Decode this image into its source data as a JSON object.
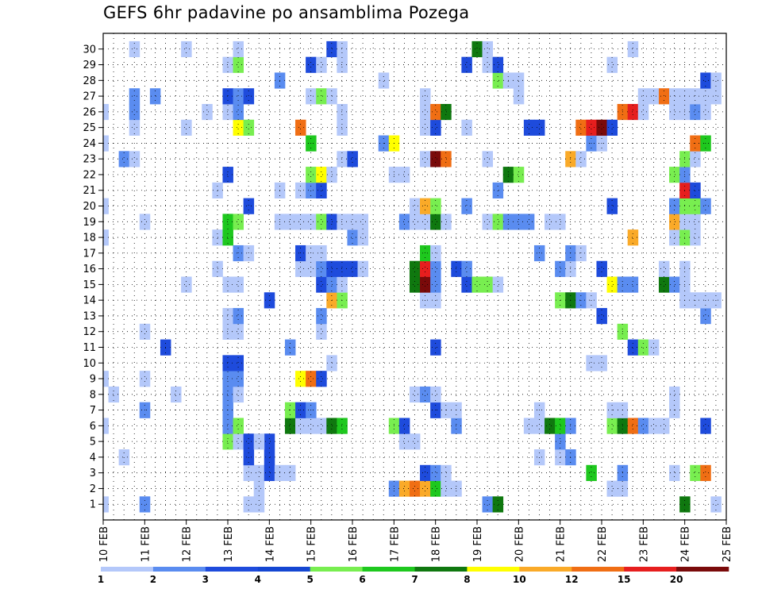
{
  "chart_data": {
    "type": "heatmap",
    "title": "GEFS 6hr padavine po ansamblima Pozega",
    "xlabel": "",
    "ylabel": "",
    "x_tick_labels": [
      "10 FEB",
      "11 FEB",
      "12 FEB",
      "13 FEB",
      "14 FEB",
      "15 FEB",
      "16 FEB",
      "17 FEB",
      "18 FEB",
      "19 FEB",
      "20 FEB",
      "21 FEB",
      "22 FEB",
      "23 FEB",
      "24 FEB",
      "25 FEB"
    ],
    "y_tick_labels": [
      "1",
      "2",
      "3",
      "4",
      "5",
      "6",
      "7",
      "8",
      "9",
      "10",
      "11",
      "12",
      "13",
      "14",
      "15",
      "16",
      "17",
      "18",
      "19",
      "20",
      "21",
      "22",
      "23",
      "24",
      "25",
      "26",
      "27",
      "28",
      "29",
      "30"
    ],
    "x_steps_per_day": 4,
    "n_steps": 61,
    "n_members": 30,
    "colorbar": {
      "levels": [
        "1",
        "2",
        "3",
        "4",
        "5",
        "6",
        "7",
        "8",
        "10",
        "12",
        "15",
        "20"
      ],
      "colors": [
        "#b4c8fa",
        "#5a8cf0",
        "#1e4bdc",
        "#1446d2",
        "#78ee50",
        "#1ec81e",
        "#0f780f",
        "#ffff00",
        "#faaa28",
        "#f06e14",
        "#e61e1e",
        "#7a0a0a"
      ]
    },
    "cells": [
      [
        1,
        0,
        1
      ],
      [
        1,
        4,
        2
      ],
      [
        1,
        14,
        1
      ],
      [
        1,
        15,
        1
      ],
      [
        1,
        37,
        2
      ],
      [
        1,
        38,
        7
      ],
      [
        1,
        56,
        7
      ],
      [
        1,
        59,
        1
      ],
      [
        2,
        15,
        1
      ],
      [
        2,
        28,
        2
      ],
      [
        2,
        29,
        10
      ],
      [
        2,
        30,
        12
      ],
      [
        2,
        31,
        10
      ],
      [
        2,
        32,
        6
      ],
      [
        2,
        33,
        1
      ],
      [
        2,
        34,
        1
      ],
      [
        2,
        49,
        1
      ],
      [
        2,
        50,
        1
      ],
      [
        3,
        14,
        1
      ],
      [
        3,
        15,
        1
      ],
      [
        3,
        16,
        3
      ],
      [
        3,
        17,
        1
      ],
      [
        3,
        18,
        1
      ],
      [
        3,
        31,
        3
      ],
      [
        3,
        32,
        2
      ],
      [
        3,
        33,
        1
      ],
      [
        3,
        47,
        6
      ],
      [
        3,
        50,
        2
      ],
      [
        3,
        55,
        1
      ],
      [
        3,
        57,
        5
      ],
      [
        3,
        58,
        12
      ],
      [
        4,
        2,
        1
      ],
      [
        4,
        14,
        3
      ],
      [
        4,
        16,
        3
      ],
      [
        4,
        42,
        1
      ],
      [
        4,
        44,
        1
      ],
      [
        4,
        45,
        2
      ],
      [
        5,
        12,
        5
      ],
      [
        5,
        13,
        1
      ],
      [
        5,
        14,
        3
      ],
      [
        5,
        16,
        3
      ],
      [
        5,
        15,
        1
      ],
      [
        5,
        29,
        1
      ],
      [
        5,
        30,
        1
      ],
      [
        5,
        44,
        2
      ],
      [
        6,
        0,
        1
      ],
      [
        6,
        12,
        2
      ],
      [
        6,
        13,
        5
      ],
      [
        6,
        18,
        7
      ],
      [
        6,
        19,
        1
      ],
      [
        6,
        20,
        1
      ],
      [
        6,
        21,
        1
      ],
      [
        6,
        22,
        7
      ],
      [
        6,
        23,
        6
      ],
      [
        6,
        28,
        5
      ],
      [
        6,
        29,
        3
      ],
      [
        6,
        34,
        2
      ],
      [
        6,
        41,
        1
      ],
      [
        6,
        42,
        1
      ],
      [
        6,
        43,
        7
      ],
      [
        6,
        44,
        6
      ],
      [
        6,
        45,
        2
      ],
      [
        6,
        49,
        5
      ],
      [
        6,
        50,
        7
      ],
      [
        6,
        51,
        12
      ],
      [
        6,
        52,
        2
      ],
      [
        6,
        53,
        1
      ],
      [
        6,
        54,
        1
      ],
      [
        6,
        58,
        3
      ],
      [
        7,
        4,
        2
      ],
      [
        7,
        12,
        2
      ],
      [
        7,
        18,
        5
      ],
      [
        7,
        19,
        3
      ],
      [
        7,
        20,
        2
      ],
      [
        7,
        32,
        3
      ],
      [
        7,
        33,
        1
      ],
      [
        7,
        34,
        1
      ],
      [
        7,
        42,
        1
      ],
      [
        7,
        49,
        1
      ],
      [
        7,
        50,
        1
      ],
      [
        7,
        55,
        1
      ],
      [
        8,
        1,
        1
      ],
      [
        8,
        7,
        1
      ],
      [
        8,
        12,
        2
      ],
      [
        8,
        13,
        1
      ],
      [
        8,
        30,
        1
      ],
      [
        8,
        31,
        2
      ],
      [
        8,
        32,
        1
      ],
      [
        8,
        55,
        1
      ],
      [
        9,
        0,
        1
      ],
      [
        9,
        4,
        1
      ],
      [
        9,
        12,
        2
      ],
      [
        9,
        13,
        2
      ],
      [
        9,
        19,
        8
      ],
      [
        9,
        20,
        12
      ],
      [
        9,
        21,
        3
      ],
      [
        10,
        12,
        3
      ],
      [
        10,
        13,
        3
      ],
      [
        10,
        22,
        1
      ],
      [
        10,
        47,
        1
      ],
      [
        10,
        48,
        1
      ],
      [
        11,
        6,
        3
      ],
      [
        11,
        18,
        2
      ],
      [
        11,
        32,
        3
      ],
      [
        11,
        51,
        3
      ],
      [
        11,
        52,
        5
      ],
      [
        11,
        53,
        1
      ],
      [
        12,
        4,
        1
      ],
      [
        12,
        12,
        1
      ],
      [
        12,
        13,
        1
      ],
      [
        12,
        21,
        1
      ],
      [
        12,
        50,
        5
      ],
      [
        13,
        12,
        1
      ],
      [
        13,
        13,
        2
      ],
      [
        13,
        21,
        2
      ],
      [
        13,
        48,
        3
      ],
      [
        13,
        58,
        2
      ],
      [
        14,
        16,
        3
      ],
      [
        14,
        22,
        10
      ],
      [
        14,
        23,
        5
      ],
      [
        14,
        31,
        1
      ],
      [
        14,
        32,
        1
      ],
      [
        14,
        44,
        5
      ],
      [
        14,
        45,
        7
      ],
      [
        14,
        46,
        2
      ],
      [
        14,
        47,
        1
      ],
      [
        14,
        56,
        1
      ],
      [
        14,
        57,
        1
      ],
      [
        14,
        58,
        1
      ],
      [
        14,
        59,
        1
      ],
      [
        15,
        8,
        1
      ],
      [
        15,
        12,
        1
      ],
      [
        15,
        13,
        1
      ],
      [
        15,
        21,
        3
      ],
      [
        15,
        22,
        2
      ],
      [
        15,
        23,
        1
      ],
      [
        15,
        30,
        7
      ],
      [
        15,
        31,
        20
      ],
      [
        15,
        32,
        2
      ],
      [
        15,
        35,
        3
      ],
      [
        15,
        36,
        5
      ],
      [
        15,
        37,
        5
      ],
      [
        15,
        38,
        1
      ],
      [
        15,
        49,
        8
      ],
      [
        15,
        50,
        2
      ],
      [
        15,
        51,
        2
      ],
      [
        15,
        54,
        7
      ],
      [
        15,
        55,
        2
      ],
      [
        15,
        56,
        1
      ],
      [
        16,
        11,
        1
      ],
      [
        16,
        19,
        1
      ],
      [
        16,
        20,
        1
      ],
      [
        16,
        21,
        2
      ],
      [
        16,
        22,
        3
      ],
      [
        16,
        23,
        3
      ],
      [
        16,
        24,
        3
      ],
      [
        16,
        25,
        1
      ],
      [
        16,
        30,
        7
      ],
      [
        16,
        31,
        15
      ],
      [
        16,
        32,
        2
      ],
      [
        16,
        34,
        3
      ],
      [
        16,
        35,
        2
      ],
      [
        16,
        44,
        2
      ],
      [
        16,
        45,
        1
      ],
      [
        16,
        48,
        3
      ],
      [
        16,
        54,
        1
      ],
      [
        16,
        56,
        1
      ],
      [
        17,
        13,
        2
      ],
      [
        17,
        14,
        1
      ],
      [
        17,
        19,
        3
      ],
      [
        17,
        20,
        1
      ],
      [
        17,
        21,
        1
      ],
      [
        17,
        31,
        6
      ],
      [
        17,
        32,
        1
      ],
      [
        17,
        42,
        2
      ],
      [
        17,
        45,
        2
      ],
      [
        17,
        46,
        1
      ],
      [
        18,
        0,
        1
      ],
      [
        18,
        11,
        1
      ],
      [
        18,
        12,
        6
      ],
      [
        18,
        24,
        2
      ],
      [
        18,
        25,
        1
      ],
      [
        18,
        51,
        10
      ],
      [
        18,
        55,
        1
      ],
      [
        18,
        56,
        5
      ],
      [
        18,
        57,
        1
      ],
      [
        19,
        4,
        1
      ],
      [
        19,
        12,
        6
      ],
      [
        19,
        13,
        5
      ],
      [
        19,
        17,
        1
      ],
      [
        19,
        18,
        1
      ],
      [
        19,
        19,
        1
      ],
      [
        19,
        20,
        1
      ],
      [
        19,
        21,
        5
      ],
      [
        19,
        22,
        3
      ],
      [
        19,
        23,
        1
      ],
      [
        19,
        24,
        1
      ],
      [
        19,
        25,
        1
      ],
      [
        19,
        29,
        2
      ],
      [
        19,
        30,
        1
      ],
      [
        19,
        31,
        1
      ],
      [
        19,
        32,
        7
      ],
      [
        19,
        33,
        1
      ],
      [
        19,
        37,
        1
      ],
      [
        19,
        38,
        5
      ],
      [
        19,
        39,
        2
      ],
      [
        19,
        40,
        2
      ],
      [
        19,
        41,
        2
      ],
      [
        19,
        43,
        1
      ],
      [
        19,
        44,
        1
      ],
      [
        19,
        55,
        10
      ],
      [
        19,
        56,
        1
      ],
      [
        19,
        57,
        1
      ],
      [
        20,
        0,
        1
      ],
      [
        20,
        14,
        3
      ],
      [
        20,
        30,
        1
      ],
      [
        20,
        31,
        10
      ],
      [
        20,
        32,
        5
      ],
      [
        20,
        35,
        2
      ],
      [
        20,
        49,
        3
      ],
      [
        20,
        55,
        2
      ],
      [
        20,
        56,
        5
      ],
      [
        20,
        57,
        5
      ],
      [
        20,
        58,
        2
      ],
      [
        21,
        11,
        1
      ],
      [
        21,
        17,
        1
      ],
      [
        21,
        19,
        1
      ],
      [
        21,
        20,
        2
      ],
      [
        21,
        21,
        3
      ],
      [
        21,
        38,
        2
      ],
      [
        21,
        56,
        15
      ],
      [
        21,
        57,
        3
      ],
      [
        22,
        12,
        3
      ],
      [
        22,
        20,
        5
      ],
      [
        22,
        21,
        8
      ],
      [
        22,
        22,
        1
      ],
      [
        22,
        28,
        1
      ],
      [
        22,
        29,
        1
      ],
      [
        22,
        39,
        7
      ],
      [
        22,
        40,
        5
      ],
      [
        22,
        55,
        5
      ],
      [
        22,
        56,
        2
      ],
      [
        23,
        2,
        2
      ],
      [
        23,
        3,
        1
      ],
      [
        23,
        23,
        1
      ],
      [
        23,
        24,
        3
      ],
      [
        23,
        31,
        1
      ],
      [
        23,
        32,
        20
      ],
      [
        23,
        33,
        12
      ],
      [
        23,
        37,
        1
      ],
      [
        23,
        45,
        10
      ],
      [
        23,
        46,
        1
      ],
      [
        23,
        56,
        5
      ],
      [
        23,
        57,
        1
      ],
      [
        24,
        0,
        1
      ],
      [
        24,
        20,
        6
      ],
      [
        24,
        27,
        2
      ],
      [
        24,
        28,
        8
      ],
      [
        24,
        47,
        2
      ],
      [
        24,
        48,
        1
      ],
      [
        24,
        57,
        12
      ],
      [
        24,
        58,
        6
      ],
      [
        25,
        3,
        1
      ],
      [
        25,
        8,
        1
      ],
      [
        25,
        13,
        8
      ],
      [
        25,
        14,
        5
      ],
      [
        25,
        19,
        12
      ],
      [
        25,
        23,
        1
      ],
      [
        25,
        31,
        1
      ],
      [
        25,
        32,
        3
      ],
      [
        25,
        35,
        1
      ],
      [
        25,
        41,
        3
      ],
      [
        25,
        42,
        3
      ],
      [
        25,
        46,
        12
      ],
      [
        25,
        47,
        15
      ],
      [
        25,
        48,
        20
      ],
      [
        25,
        49,
        3
      ],
      [
        26,
        0,
        1
      ],
      [
        26,
        3,
        2
      ],
      [
        26,
        10,
        1
      ],
      [
        26,
        12,
        1
      ],
      [
        26,
        13,
        2
      ],
      [
        26,
        23,
        1
      ],
      [
        26,
        31,
        1
      ],
      [
        26,
        32,
        12
      ],
      [
        26,
        33,
        7
      ],
      [
        26,
        50,
        12
      ],
      [
        26,
        51,
        15
      ],
      [
        26,
        52,
        1
      ],
      [
        26,
        55,
        1
      ],
      [
        26,
        56,
        1
      ],
      [
        26,
        57,
        2
      ],
      [
        26,
        58,
        1
      ],
      [
        27,
        3,
        2
      ],
      [
        27,
        5,
        2
      ],
      [
        27,
        12,
        3
      ],
      [
        27,
        13,
        2
      ],
      [
        27,
        14,
        3
      ],
      [
        27,
        20,
        1
      ],
      [
        27,
        21,
        5
      ],
      [
        27,
        22,
        1
      ],
      [
        27,
        31,
        1
      ],
      [
        27,
        40,
        1
      ],
      [
        27,
        52,
        1
      ],
      [
        27,
        53,
        1
      ],
      [
        27,
        54,
        12
      ],
      [
        27,
        55,
        1
      ],
      [
        27,
        56,
        1
      ],
      [
        27,
        57,
        1
      ],
      [
        27,
        58,
        1
      ],
      [
        27,
        59,
        1
      ],
      [
        28,
        17,
        2
      ],
      [
        28,
        27,
        1
      ],
      [
        28,
        38,
        5
      ],
      [
        28,
        39,
        1
      ],
      [
        28,
        40,
        1
      ],
      [
        28,
        58,
        3
      ],
      [
        28,
        59,
        1
      ],
      [
        29,
        12,
        1
      ],
      [
        29,
        13,
        5
      ],
      [
        29,
        20,
        3
      ],
      [
        29,
        21,
        1
      ],
      [
        29,
        23,
        1
      ],
      [
        29,
        35,
        3
      ],
      [
        29,
        37,
        1
      ],
      [
        29,
        38,
        3
      ],
      [
        29,
        49,
        1
      ],
      [
        30,
        3,
        1
      ],
      [
        30,
        8,
        1
      ],
      [
        30,
        13,
        1
      ],
      [
        30,
        22,
        3
      ],
      [
        30,
        23,
        1
      ],
      [
        30,
        36,
        7
      ],
      [
        30,
        37,
        1
      ],
      [
        30,
        51,
        1
      ]
    ]
  },
  "colors": {
    "frame": "#000000",
    "grid": "#000000",
    "background": "#ffffff"
  }
}
